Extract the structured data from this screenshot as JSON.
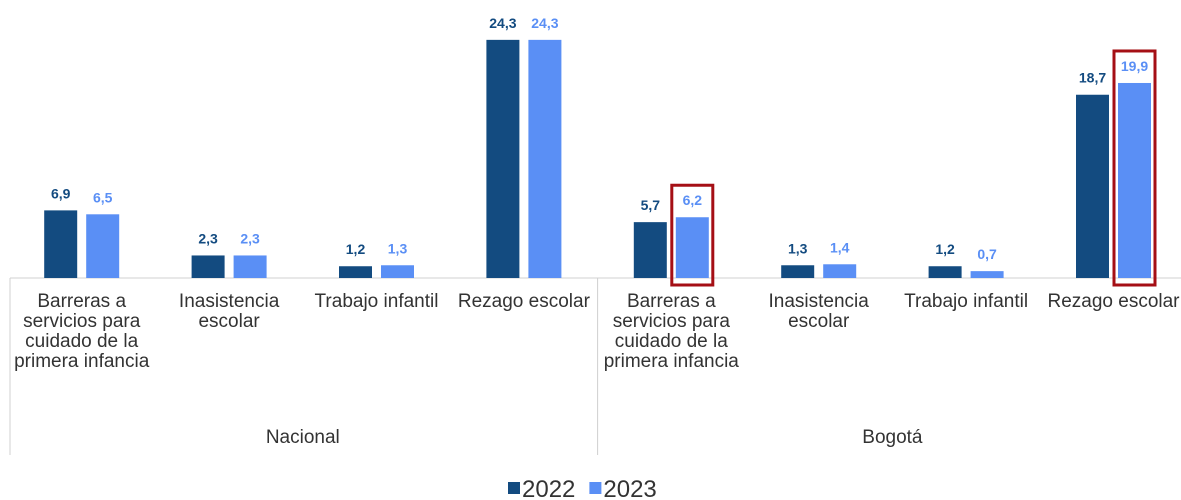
{
  "chart_data": {
    "type": "bar",
    "groups": [
      {
        "name": "Nacional",
        "categories": [
          "Barreras a servicios para cuidado de la primera infancia",
          "Inasistencia escolar",
          "Trabajo infantil",
          "Rezago escolar"
        ]
      },
      {
        "name": "Bogotá",
        "categories": [
          "Barreras a servicios para cuidado de la primera infancia",
          "Inasistencia escolar",
          "Trabajo infantil",
          "Rezago escolar"
        ]
      }
    ],
    "series": [
      {
        "name": "2022",
        "color": "#134b80",
        "values": [
          6.9,
          2.3,
          1.2,
          24.3,
          5.7,
          1.3,
          1.2,
          18.7
        ],
        "value_labels": [
          "6,9",
          "2,3",
          "1,2",
          "24,3",
          "5,7",
          "1,3",
          "1,2",
          "18,7"
        ]
      },
      {
        "name": "2023",
        "color": "#5a8ff5",
        "values": [
          6.5,
          2.3,
          1.3,
          24.3,
          6.2,
          1.4,
          0.7,
          19.9
        ],
        "value_labels": [
          "6,5",
          "2,3",
          "1,3",
          "24,3",
          "6,2",
          "1,4",
          "0,7",
          "19,9"
        ]
      }
    ],
    "ylim": [
      0,
      25
    ],
    "highlights": [
      "series.1.values.4",
      "series.1.values.7"
    ],
    "highlight_color": "#a50f15",
    "legend": "bottom"
  }
}
